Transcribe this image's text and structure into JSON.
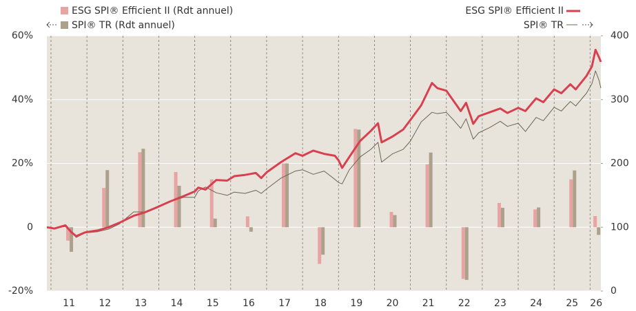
{
  "chart_data": {
    "type": "bar",
    "xlim": [
      2010.885,
      2026.3
    ],
    "xticks": [
      {
        "value": 2011.5,
        "label": "11"
      },
      {
        "value": 2012.5,
        "label": "12"
      },
      {
        "value": 2013.5,
        "label": "13"
      },
      {
        "value": 2014.5,
        "label": "14"
      },
      {
        "value": 2015.5,
        "label": "15"
      },
      {
        "value": 2016.5,
        "label": "16"
      },
      {
        "value": 2017.5,
        "label": "17"
      },
      {
        "value": 2018.5,
        "label": "18"
      },
      {
        "value": 2019.5,
        "label": "19"
      },
      {
        "value": 2020.5,
        "label": "20"
      },
      {
        "value": 2021.5,
        "label": "21"
      },
      {
        "value": 2022.5,
        "label": "22"
      },
      {
        "value": 2023.5,
        "label": "23"
      },
      {
        "value": 2024.5,
        "label": "24"
      },
      {
        "value": 2025.5,
        "label": "25"
      },
      {
        "value": 2026.17,
        "label": "26"
      }
    ],
    "ylim": [
      -20,
      60
    ],
    "yticks": [
      {
        "value": -20,
        "label": "-20%"
      },
      0,
      {
        "value": 20,
        "label": "20%"
      },
      {
        "value": 40,
        "label": "40%"
      },
      {
        "value": 60,
        "label": "60%"
      }
    ],
    "y2lim": [
      0,
      400
    ],
    "y2ticks": [
      0,
      100,
      200,
      300,
      400
    ],
    "x": [
      2011.5,
      2012.5,
      2013.5,
      2014.5,
      2015.5,
      2016.5,
      2017.5,
      2018.5,
      2019.5,
      2020.5,
      2021.5,
      2022.5,
      2023.5,
      2024.5,
      2025.5,
      2026.17
    ],
    "series": [
      {
        "name": "ESG SPI® Efficient II (Rdt annuel)",
        "type": "bar",
        "color": "#e8a3a3",
        "values": [
          -4.2,
          12.3,
          23.5,
          17.3,
          15.0,
          3.4,
          20.0,
          -11.5,
          30.8,
          4.8,
          19.7,
          -16.2,
          7.6,
          5.6,
          15.0,
          3.5
        ]
      },
      {
        "name": "SPI® TR (Rdt annuel)",
        "type": "bar",
        "color": "#aca18b",
        "values": [
          -7.7,
          17.9,
          24.6,
          13.0,
          2.7,
          -1.4,
          20.0,
          -8.6,
          30.6,
          3.8,
          23.4,
          -16.5,
          6.1,
          6.2,
          17.8,
          -2.4
        ]
      },
      {
        "name": "ESG SPI® Efficient II",
        "type": "line",
        "axis": "y2",
        "color": "#d9404f",
        "x": [
          2010.885,
          2011.1,
          2011.4,
          2011.55,
          2011.7,
          2011.95,
          2012.3,
          2012.6,
          2012.9,
          2013.3,
          2013.6,
          2013.9,
          2014.3,
          2014.7,
          2015.0,
          2015.1,
          2015.3,
          2015.6,
          2015.9,
          2016.1,
          2016.4,
          2016.7,
          2016.85,
          2017.0,
          2017.4,
          2017.8,
          2018.0,
          2018.3,
          2018.6,
          2018.9,
          2019.0,
          2019.1,
          2019.3,
          2019.6,
          2019.9,
          2020.1,
          2020.2,
          2020.5,
          2020.8,
          2021.0,
          2021.3,
          2021.6,
          2021.75,
          2022.0,
          2022.2,
          2022.4,
          2022.55,
          2022.75,
          2022.9,
          2023.2,
          2023.5,
          2023.7,
          2024.0,
          2024.2,
          2024.5,
          2024.7,
          2025.0,
          2025.2,
          2025.45,
          2025.6,
          2025.9,
          2026.05,
          2026.15,
          2026.25,
          2026.3
        ],
        "values": [
          100,
          98,
          103,
          93,
          86,
          92,
          95,
          100,
          107,
          118,
          123,
          130,
          140,
          149,
          156,
          162,
          159,
          174,
          173,
          180,
          182,
          185,
          177,
          186,
          202,
          216,
          212,
          220,
          215,
          212,
          205,
          193,
          210,
          235,
          251,
          263,
          233,
          242,
          253,
          268,
          291,
          326,
          318,
          314,
          298,
          282,
          295,
          262,
          274,
          280,
          286,
          279,
          287,
          282,
          302,
          296,
          316,
          310,
          324,
          316,
          337,
          352,
          378,
          366,
          359
        ]
      },
      {
        "name": "SPI® TR",
        "type": "line",
        "axis": "y2",
        "color": "#6b6450",
        "x": [
          2010.885,
          2011.1,
          2011.4,
          2011.55,
          2011.7,
          2011.95,
          2012.3,
          2012.6,
          2012.9,
          2013.3,
          2013.6,
          2013.9,
          2014.3,
          2014.7,
          2015.0,
          2015.1,
          2015.3,
          2015.6,
          2015.9,
          2016.1,
          2016.4,
          2016.7,
          2016.85,
          2017.0,
          2017.4,
          2017.8,
          2018.0,
          2018.3,
          2018.6,
          2018.9,
          2019.0,
          2019.1,
          2019.3,
          2019.6,
          2019.9,
          2020.1,
          2020.2,
          2020.5,
          2020.8,
          2021.0,
          2021.3,
          2021.6,
          2021.75,
          2022.0,
          2022.2,
          2022.4,
          2022.55,
          2022.75,
          2022.9,
          2023.2,
          2023.5,
          2023.7,
          2024.0,
          2024.2,
          2024.5,
          2024.7,
          2025.0,
          2025.2,
          2025.45,
          2025.6,
          2025.9,
          2026.05,
          2026.15,
          2026.25,
          2026.3
        ],
        "values": [
          100,
          99,
          101,
          95,
          84,
          91,
          93,
          97,
          105,
          124,
          124,
          131,
          140,
          147,
          147,
          157,
          163,
          154,
          150,
          155,
          153,
          158,
          153,
          160,
          177,
          188,
          190,
          183,
          188,
          175,
          170,
          168,
          190,
          210,
          222,
          233,
          202,
          215,
          222,
          235,
          265,
          280,
          278,
          280,
          268,
          255,
          270,
          238,
          248,
          256,
          266,
          258,
          263,
          250,
          272,
          267,
          288,
          282,
          297,
          290,
          310,
          325,
          345,
          330,
          318
        ]
      }
    ]
  }
}
